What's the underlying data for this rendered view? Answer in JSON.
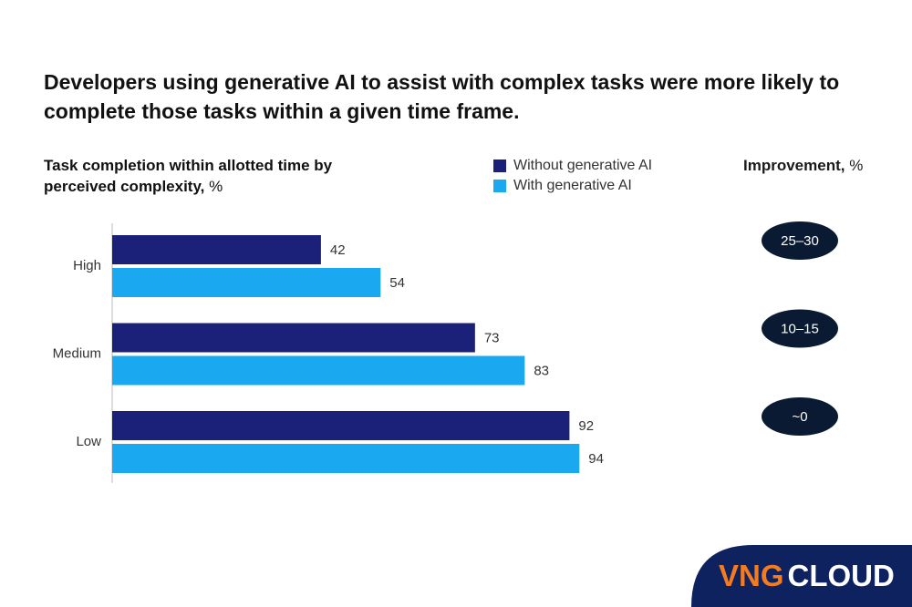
{
  "chart_data": {
    "type": "hbar",
    "title": "Developers using generative AI to assist with complex tasks were more likely to complete those tasks within a given time frame.",
    "axis_title": "Task completion within allotted time by perceived complexity,",
    "axis_unit": "%",
    "categories": [
      "High",
      "Medium",
      "Low"
    ],
    "series": [
      {
        "name": "Without generative AI",
        "color": "#1b2078",
        "values": [
          42,
          73,
          92
        ]
      },
      {
        "name": "With generative AI",
        "color": "#1aa8f0",
        "values": [
          54,
          83,
          94
        ]
      }
    ],
    "xlim": [
      0,
      100
    ],
    "improvement": {
      "title": "Improvement,",
      "unit": "%",
      "labels": [
        "25–30",
        "10–15",
        "~0"
      ]
    }
  },
  "logo": {
    "brand": "VNG",
    "product": "CLOUD"
  }
}
